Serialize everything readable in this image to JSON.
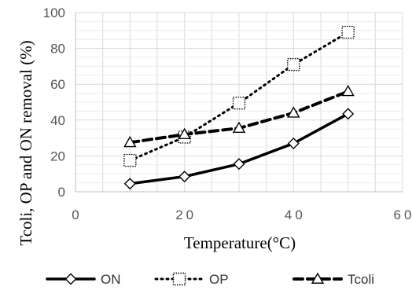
{
  "chart_data": {
    "type": "line",
    "title": "",
    "xlabel": "Temperature(°C)",
    "ylabel": "Tcoli, OP and ON removal (%)",
    "xlim": [
      0,
      60
    ],
    "ylim": [
      0,
      100
    ],
    "x_ticks": [
      0,
      20,
      40,
      60
    ],
    "x_tick_labels": [
      "0",
      "20",
      "40",
      "60"
    ],
    "y_ticks": [
      0,
      20,
      40,
      60,
      80,
      100
    ],
    "y_tick_labels": [
      "0",
      "20",
      "40",
      "60",
      "80",
      "100"
    ],
    "grid": true,
    "legend_position": "bottom",
    "series": [
      {
        "name": "ON",
        "x": [
          10,
          20,
          30,
          40,
          50
        ],
        "values": [
          4.5,
          8.5,
          15.5,
          27,
          43.5
        ],
        "line_style": "solid",
        "marker": "diamond",
        "color": "#000000"
      },
      {
        "name": "OP",
        "x": [
          10,
          20,
          30,
          40,
          50
        ],
        "values": [
          17.5,
          30.5,
          49.5,
          71,
          89
        ],
        "line_style": "dotted",
        "marker": "square",
        "color": "#000000"
      },
      {
        "name": "Tcoli",
        "x": [
          10,
          20,
          30,
          40,
          50
        ],
        "values": [
          27.5,
          32,
          35.5,
          44,
          56
        ],
        "line_style": "dashed",
        "marker": "triangle",
        "color": "#000000"
      }
    ]
  }
}
